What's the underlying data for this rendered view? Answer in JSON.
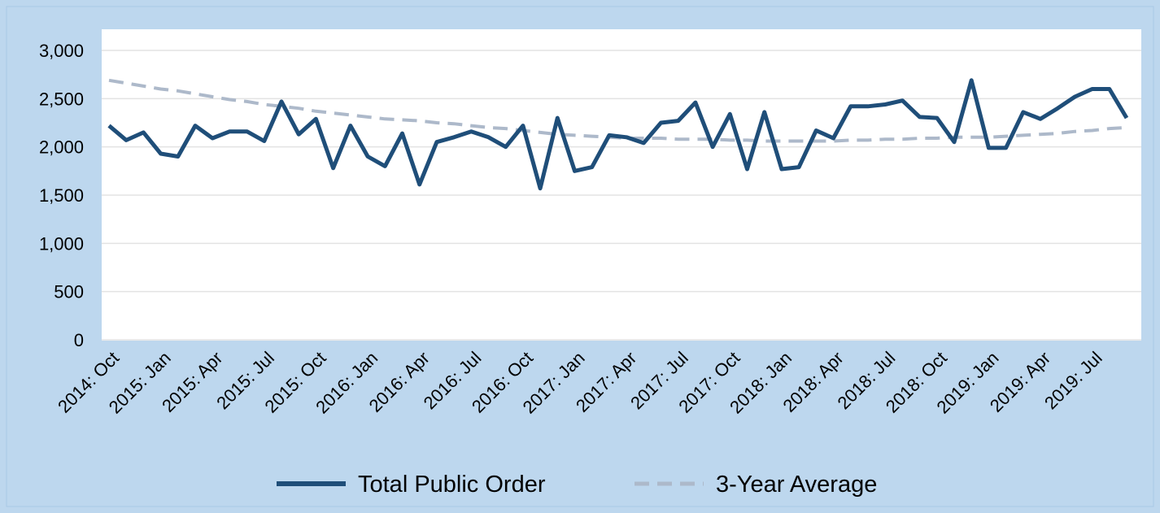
{
  "chart_data": {
    "type": "line",
    "categories": [
      "2014: Oct",
      null,
      null,
      "2015: Jan",
      null,
      null,
      "2015: Apr",
      null,
      null,
      "2015: Jul",
      null,
      null,
      "2015: Oct",
      null,
      null,
      "2016: Jan",
      null,
      null,
      "2016: Apr",
      null,
      null,
      "2016: Jul",
      null,
      null,
      "2016: Oct",
      null,
      null,
      "2017: Jan",
      null,
      null,
      "2017: Apr",
      null,
      null,
      "2017: Jul",
      null,
      null,
      "2017: Oct",
      null,
      null,
      "2018: Jan",
      null,
      null,
      "2018: Apr",
      null,
      null,
      "2018: Jul",
      null,
      null,
      "2018: Oct",
      null,
      null,
      "2019: Jan",
      null,
      null,
      "2019: Apr",
      null,
      null,
      "2019: Jul",
      null,
      null
    ],
    "series": [
      {
        "name": "Total Public Order",
        "color": "#1f4e79",
        "dashed": false,
        "values": [
          2220,
          2070,
          2150,
          1930,
          1900,
          2220,
          2090,
          2160,
          2160,
          2060,
          2470,
          2130,
          2290,
          1780,
          2220,
          1900,
          1800,
          2140,
          1610,
          2050,
          2100,
          2160,
          2100,
          2000,
          2220,
          1570,
          2300,
          1750,
          1790,
          2120,
          2100,
          2040,
          2250,
          2270,
          2460,
          2000,
          2340,
          1770,
          2360,
          1770,
          1790,
          2170,
          2090,
          2420,
          2420,
          2440,
          2480,
          2310,
          2300,
          2050,
          2690,
          1990,
          1990,
          2360,
          2290,
          2400,
          2520,
          2600,
          2600,
          2300
        ]
      },
      {
        "name": "3-Year Average",
        "color": "#adb9ca",
        "dashed": true,
        "values": [
          2690,
          2660,
          2630,
          2600,
          2580,
          2550,
          2520,
          2490,
          2470,
          2440,
          2420,
          2400,
          2370,
          2350,
          2330,
          2310,
          2290,
          2280,
          2270,
          2250,
          2240,
          2220,
          2200,
          2190,
          2170,
          2150,
          2130,
          2120,
          2110,
          2100,
          2090,
          2090,
          2090,
          2080,
          2080,
          2080,
          2070,
          2070,
          2060,
          2060,
          2060,
          2060,
          2060,
          2070,
          2070,
          2080,
          2080,
          2090,
          2090,
          2100,
          2100,
          2100,
          2110,
          2120,
          2130,
          2140,
          2160,
          2170,
          2190,
          2200
        ]
      }
    ],
    "ylim": [
      0,
      3000
    ],
    "yticks": [
      0,
      500,
      {
        "value": 1000,
        "label": "1,000"
      },
      {
        "value": 1500,
        "label": "1,500"
      },
      {
        "value": 2000,
        "label": "2,000"
      },
      {
        "value": 2500,
        "label": "2,500"
      },
      {
        "value": 3000,
        "label": "3,000"
      }
    ],
    "grid": true,
    "legend": "bottom"
  }
}
